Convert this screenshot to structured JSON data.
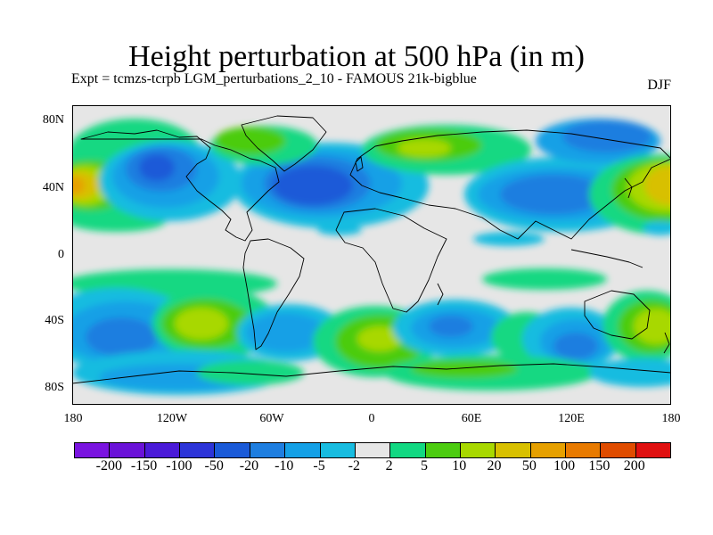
{
  "title": "Height perturbation at 500 hPa (in m)",
  "subtitle": "Expt = tcmzs-tcrpb   LGM_perturbations_2_10 - FAMOUS 21k-bigblue",
  "season": "DJF",
  "lat_labels": [
    "80N",
    "40N",
    "0",
    "40S",
    "80S"
  ],
  "lon_labels": [
    "180",
    "120W",
    "60W",
    "0",
    "60E",
    "120E",
    "180"
  ],
  "colorbar": {
    "colors": [
      "#7a14e0",
      "#6a12d8",
      "#4a1ad8",
      "#2c34d8",
      "#1a5ad8",
      "#1e7ee0",
      "#14a0e6",
      "#18bce0",
      "#e6e6e6",
      "#12d882",
      "#4ccc10",
      "#a8d800",
      "#d8c000",
      "#e6a000",
      "#e87a00",
      "#e04c00",
      "#e01010"
    ],
    "labels": [
      "-200",
      "-150",
      "-100",
      "-50",
      "-20",
      "-10",
      "-5",
      "-2",
      "2",
      "5",
      "10",
      "20",
      "50",
      "100",
      "150",
      "200"
    ]
  }
}
